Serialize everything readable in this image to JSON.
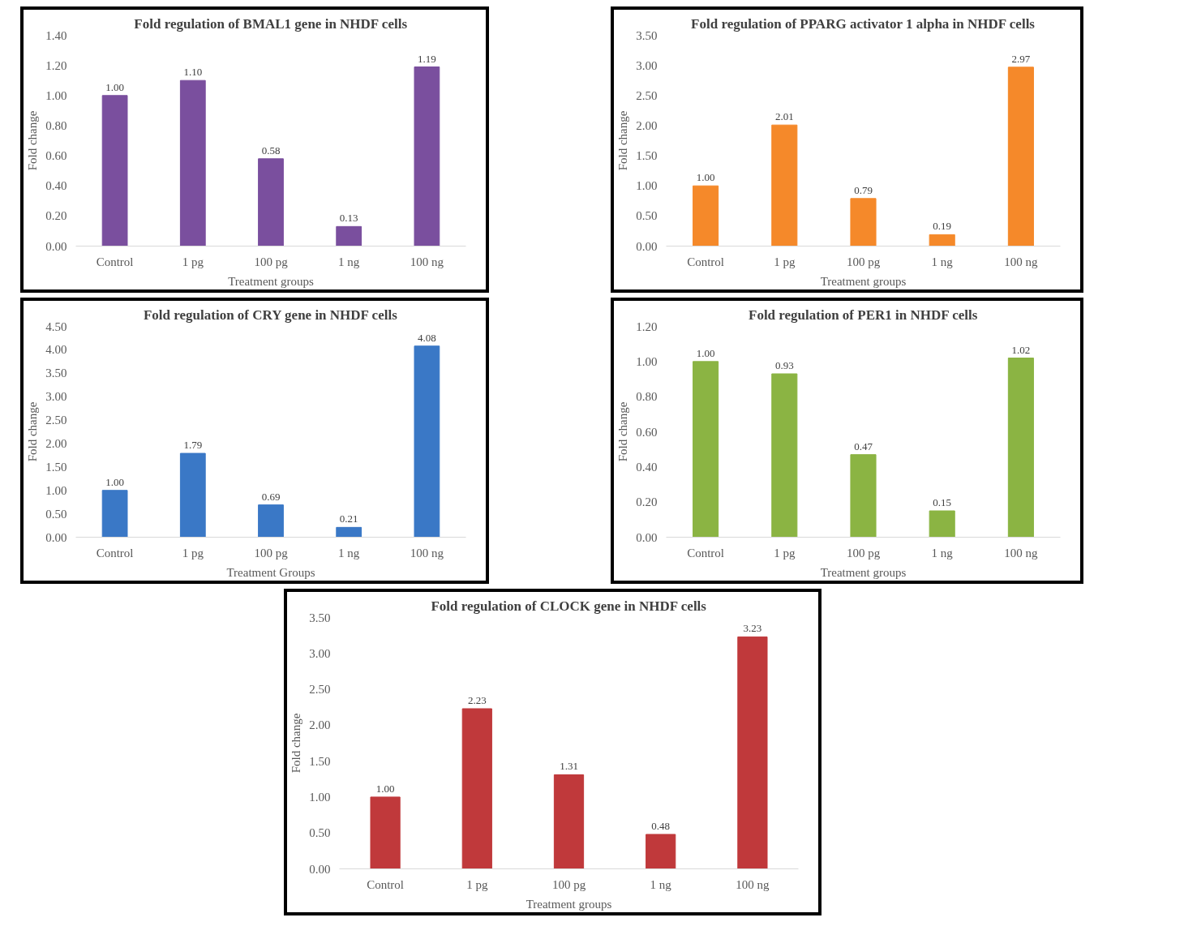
{
  "chart_data": [
    {
      "type": "bar",
      "title": "Fold regulation of BMAL1 gene in NHDF cells",
      "xlabel": "Treatment groups",
      "ylabel": "Fold change",
      "categories": [
        "Control",
        "1 pg",
        "100 pg",
        "1 ng",
        "100 ng"
      ],
      "values": [
        1.0,
        1.1,
        0.58,
        0.13,
        1.19
      ],
      "value_labels": [
        "1.00",
        "1.10",
        "0.58",
        "0.13",
        "1.19"
      ],
      "color": "#7a4f9e",
      "ylim": [
        0,
        1.4
      ],
      "yticks": [
        {
          "value": 0,
          "label": "0.00"
        },
        {
          "value": 0.2,
          "label": "0.20"
        },
        {
          "value": 0.4,
          "label": "0.40"
        },
        {
          "value": 0.6,
          "label": "0.60"
        },
        {
          "value": 0.8,
          "label": "0.80"
        },
        {
          "value": 1.0,
          "label": "1.00"
        },
        {
          "value": 1.2,
          "label": "1.20"
        },
        {
          "value": 1.4,
          "label": "1.40"
        }
      ],
      "grid": false
    },
    {
      "type": "bar",
      "title": "Fold regulation of PPARG activator 1 alpha in NHDF cells",
      "xlabel": "Treatment groups",
      "ylabel": "Fold change",
      "categories": [
        "Control",
        "1 pg",
        "100 pg",
        "1 ng",
        "100 ng"
      ],
      "values": [
        1.0,
        2.01,
        0.79,
        0.19,
        2.97
      ],
      "value_labels": [
        "1.00",
        "2.01",
        "0.79",
        "0.19",
        "2.97"
      ],
      "color": "#f5892a",
      "ylim": [
        0,
        3.5
      ],
      "yticks": [
        {
          "value": 0,
          "label": "0.00"
        },
        {
          "value": 0.5,
          "label": "0.50"
        },
        {
          "value": 1.0,
          "label": "1.00"
        },
        {
          "value": 1.5,
          "label": "1.50"
        },
        {
          "value": 2.0,
          "label": "2.00"
        },
        {
          "value": 2.5,
          "label": "2.50"
        },
        {
          "value": 3.0,
          "label": "3.00"
        },
        {
          "value": 3.5,
          "label": "3.50"
        }
      ],
      "grid": false
    },
    {
      "type": "bar",
      "title": "Fold regulation of CRY gene in NHDF cells",
      "xlabel": "Treatment Groups",
      "ylabel": "Fold change",
      "categories": [
        "Control",
        "1 pg",
        "100 pg",
        "1 ng",
        "100 ng"
      ],
      "values": [
        1.0,
        1.79,
        0.69,
        0.21,
        4.08
      ],
      "value_labels": [
        "1.00",
        "1.79",
        "0.69",
        "0.21",
        "4.08"
      ],
      "color": "#3a78c6",
      "ylim": [
        0,
        4.5
      ],
      "yticks": [
        {
          "value": 0,
          "label": "0.00"
        },
        {
          "value": 0.5,
          "label": "0.50"
        },
        {
          "value": 1.0,
          "label": "1.00"
        },
        {
          "value": 1.5,
          "label": "1.50"
        },
        {
          "value": 2.0,
          "label": "2.00"
        },
        {
          "value": 2.5,
          "label": "2.50"
        },
        {
          "value": 3.0,
          "label": "3.00"
        },
        {
          "value": 3.5,
          "label": "3.50"
        },
        {
          "value": 4.0,
          "label": "4.00"
        },
        {
          "value": 4.5,
          "label": "4.50"
        }
      ],
      "grid": false
    },
    {
      "type": "bar",
      "title": "Fold regulation of PER1 in NHDF cells",
      "xlabel": "Treatment groups",
      "ylabel": "Fold change",
      "categories": [
        "Control",
        "1 pg",
        "100 pg",
        "1 ng",
        "100 ng"
      ],
      "values": [
        1.0,
        0.93,
        0.47,
        0.15,
        1.02
      ],
      "value_labels": [
        "1.00",
        "0.93",
        "0.47",
        "0.15",
        "1.02"
      ],
      "color": "#8bb443",
      "ylim": [
        0,
        1.2
      ],
      "yticks": [
        {
          "value": 0,
          "label": "0.00"
        },
        {
          "value": 0.2,
          "label": "0.20"
        },
        {
          "value": 0.4,
          "label": "0.40"
        },
        {
          "value": 0.6,
          "label": "0.60"
        },
        {
          "value": 0.8,
          "label": "0.80"
        },
        {
          "value": 1.0,
          "label": "1.00"
        },
        {
          "value": 1.2,
          "label": "1.20"
        }
      ],
      "grid": false
    },
    {
      "type": "bar",
      "title": "Fold regulation of CLOCK gene in NHDF cells",
      "xlabel": "Treatment groups",
      "ylabel": "Fold change",
      "categories": [
        "Control",
        "1 pg",
        "100 pg",
        "1 ng",
        "100 ng"
      ],
      "values": [
        1.0,
        2.23,
        1.31,
        0.48,
        3.23
      ],
      "value_labels": [
        "1.00",
        "2.23",
        "1.31",
        "0.48",
        "3.23"
      ],
      "color": "#c0393b",
      "ylim": [
        0,
        3.5
      ],
      "yticks": [
        {
          "value": 0,
          "label": "0.00"
        },
        {
          "value": 0.5,
          "label": "0.50"
        },
        {
          "value": 1.0,
          "label": "1.00"
        },
        {
          "value": 1.5,
          "label": "1.50"
        },
        {
          "value": 2.0,
          "label": "2.00"
        },
        {
          "value": 2.5,
          "label": "2.50"
        },
        {
          "value": 3.0,
          "label": "3.00"
        },
        {
          "value": 3.5,
          "label": "3.50"
        }
      ],
      "grid": false
    }
  ]
}
